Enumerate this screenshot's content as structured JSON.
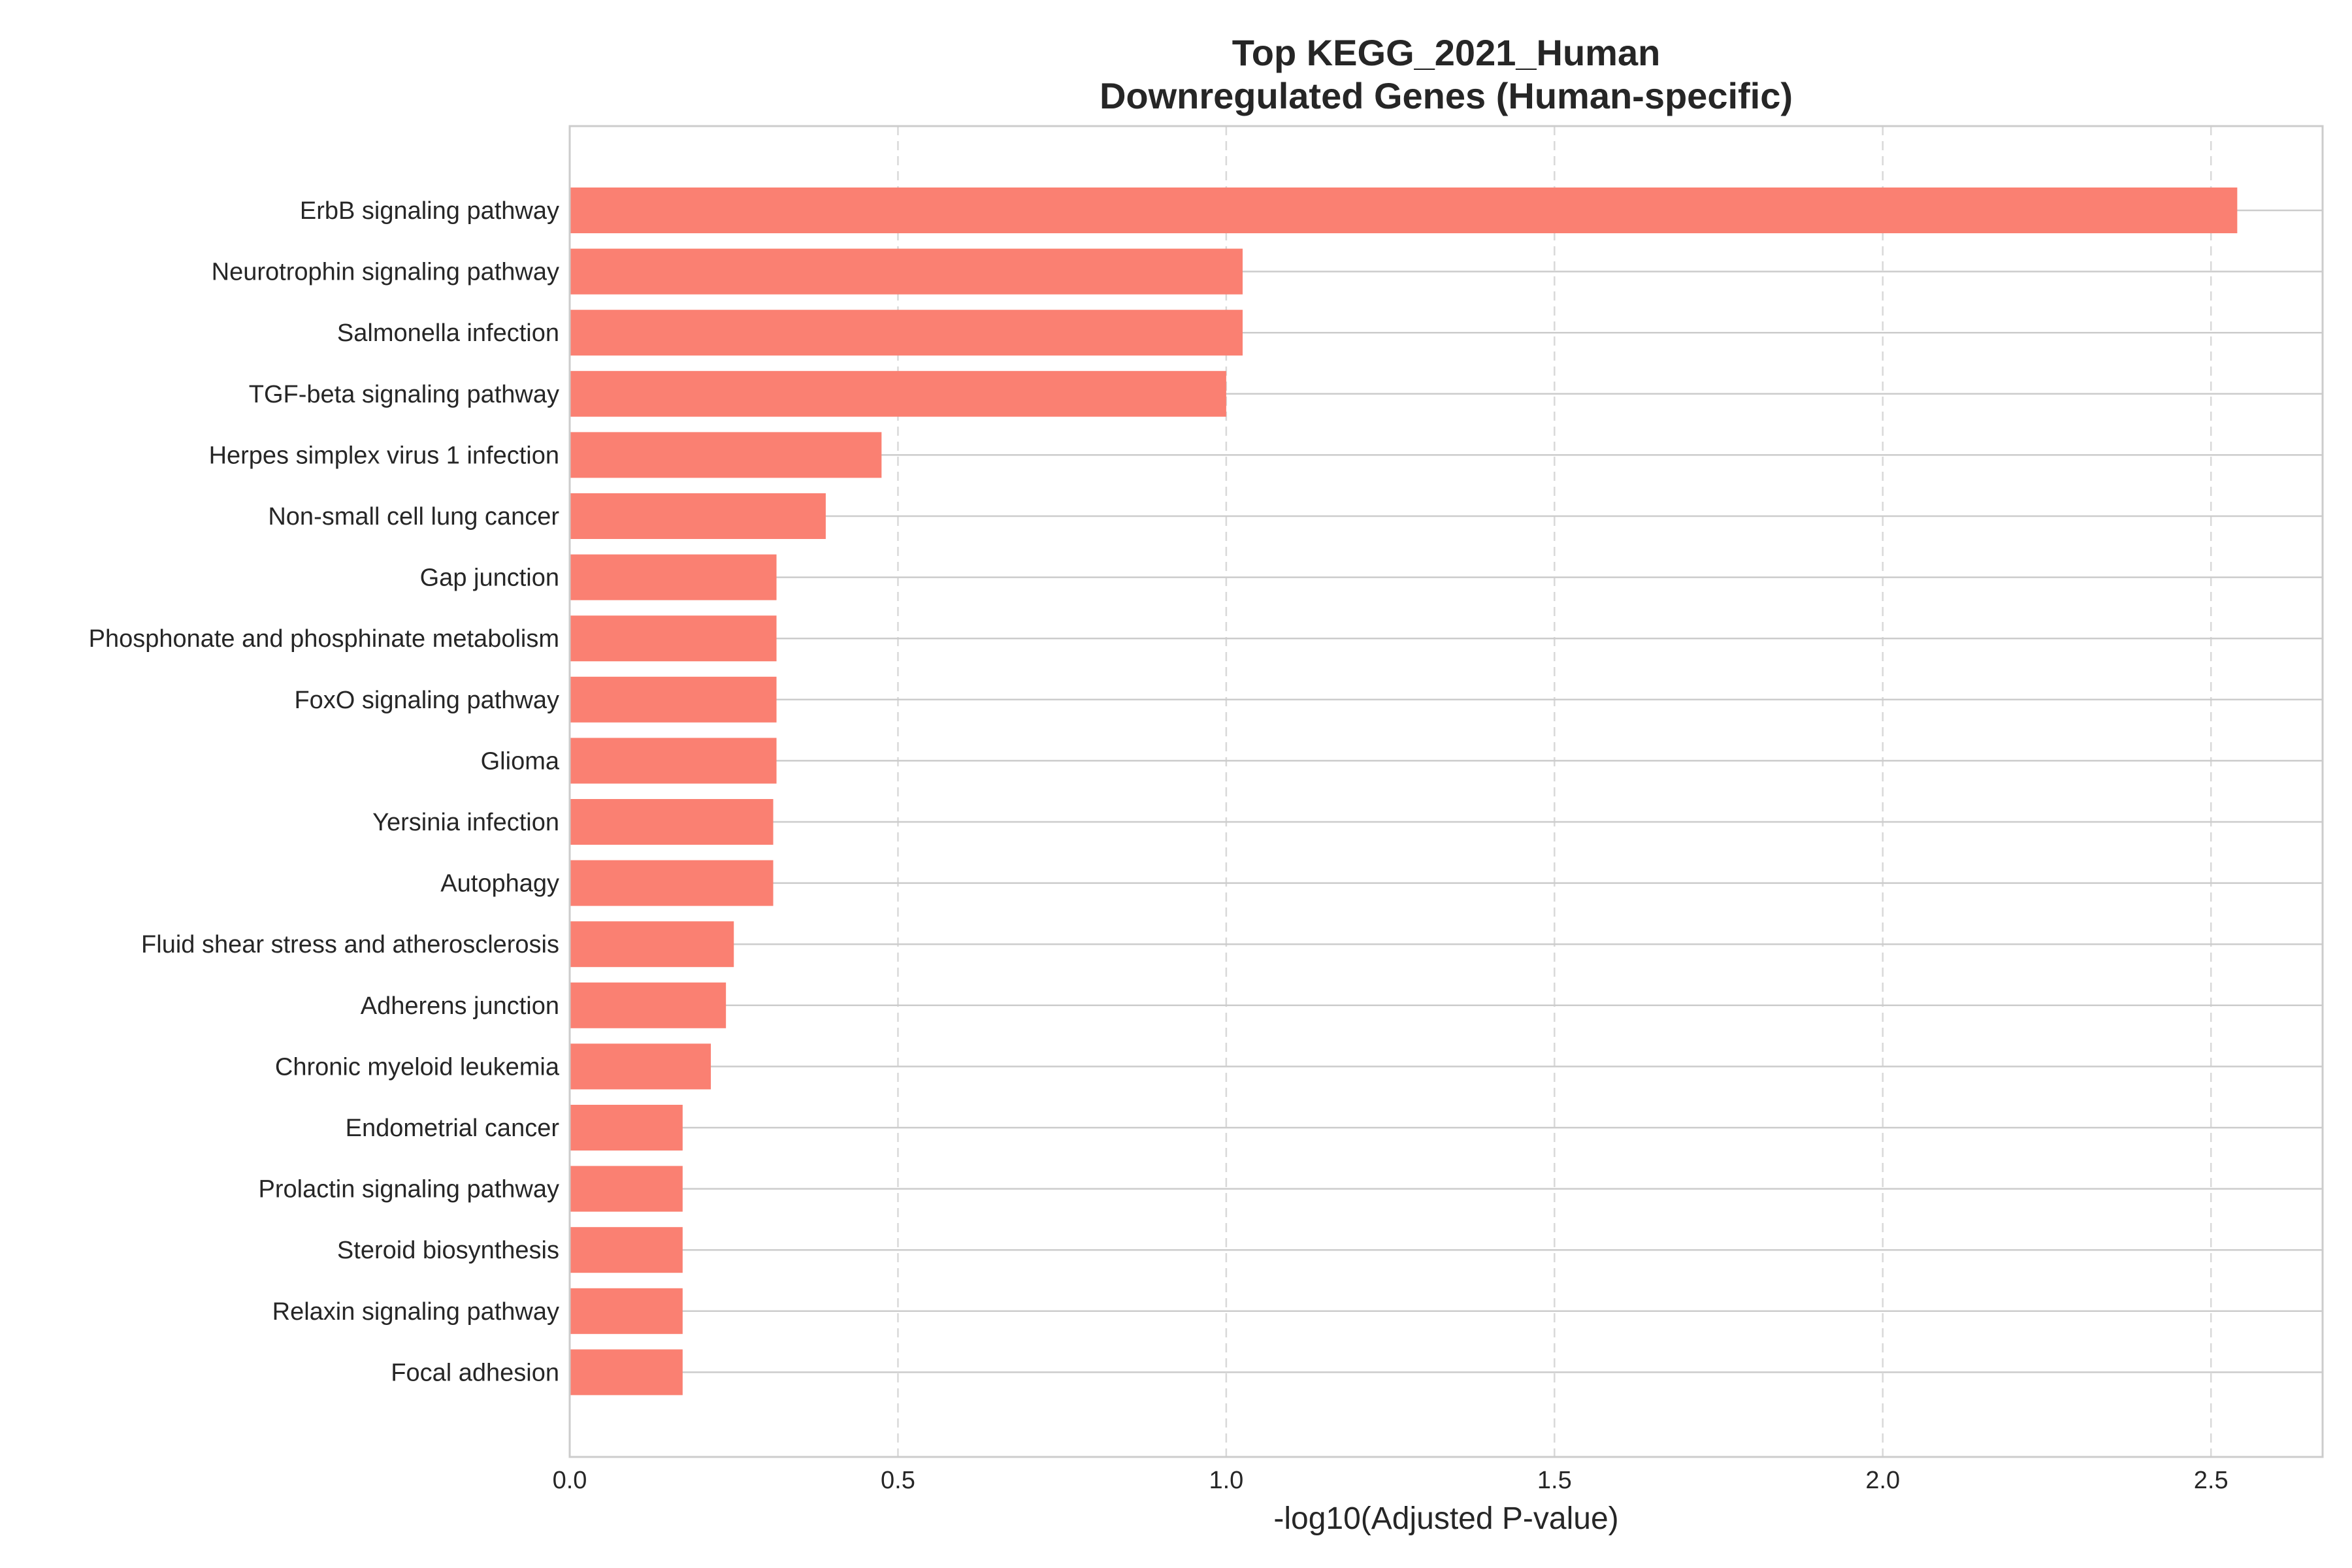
{
  "chart_data": {
    "type": "bar",
    "orientation": "horizontal",
    "title": "Top KEGG_2021_Human\nDownregulated Genes (Human-specific)",
    "xlabel": "-log10(Adjusted P-value)",
    "ylabel": "",
    "xlim": [
      0,
      2.67
    ],
    "xticks": [
      "0.0",
      "0.5",
      "1.0",
      "1.5",
      "2.0",
      "2.5"
    ],
    "grid": true,
    "bar_color": "#fa8072",
    "categories": [
      "ErbB signaling pathway",
      "Neurotrophin signaling pathway",
      "Salmonella infection",
      "TGF-beta signaling pathway",
      "Herpes simplex virus 1 infection",
      "Non-small cell lung cancer",
      "Gap junction",
      "Phosphonate and phosphinate metabolism",
      "FoxO signaling pathway",
      "Glioma",
      "Yersinia infection",
      "Autophagy",
      "Fluid shear stress and atherosclerosis",
      "Adherens junction",
      "Chronic myeloid leukemia",
      "Endometrial cancer",
      "Prolactin signaling pathway",
      "Steroid biosynthesis",
      "Relaxin signaling pathway",
      "Focal adhesion"
    ],
    "values": [
      2.54,
      1.025,
      1.025,
      1.0,
      0.475,
      0.39,
      0.315,
      0.315,
      0.315,
      0.315,
      0.31,
      0.31,
      0.25,
      0.238,
      0.215,
      0.172,
      0.172,
      0.172,
      0.172,
      0.172
    ]
  }
}
